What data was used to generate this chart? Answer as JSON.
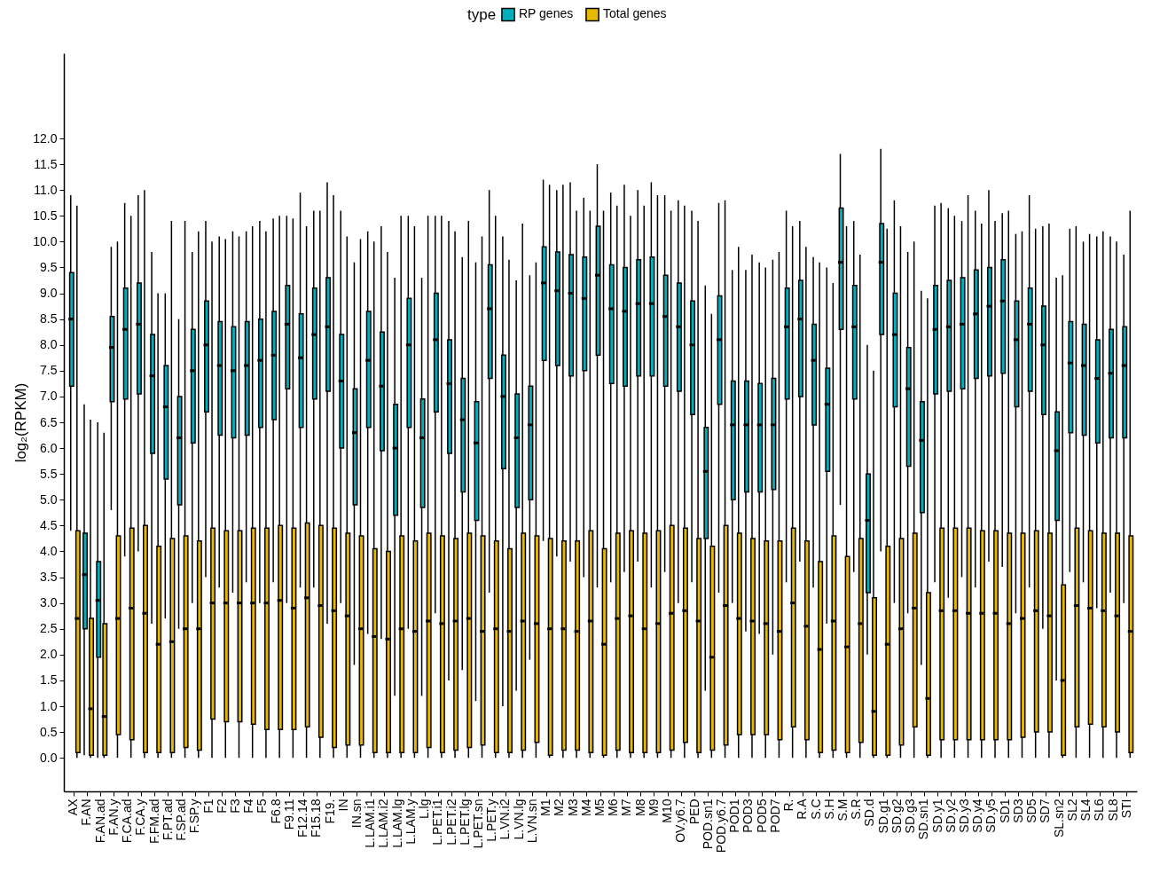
{
  "chart_data": {
    "type": "box",
    "ylabel": "log₂(RPKM)",
    "legend_title": "type",
    "legend": "top",
    "categories": [
      "AX",
      "F.AN",
      "F.AN.ad",
      "F.AN.y",
      "F.CA.ad",
      "F.CA.y",
      "F.FM.ad",
      "F.PT.ad",
      "F.SP.ad",
      "F.SP.y",
      "F1",
      "F2",
      "F3",
      "F4",
      "F5",
      "F6.8",
      "F9.11",
      "F12.14",
      "F15.18",
      "F19.",
      "IN",
      "IN.sn",
      "L.LAM.i1",
      "L.LAM.i2",
      "L.LAM.lg",
      "L.LAM.y",
      "L.lg",
      "L.PET.i1",
      "L.PET.i2",
      "L.PET.lg",
      "L.PET.sn",
      "L.PET.y",
      "L.VN.i2",
      "L.VN.lg",
      "L.VN.sn",
      "M1",
      "M2",
      "M3",
      "M4",
      "M5",
      "M6",
      "M7",
      "M8",
      "M9",
      "M10",
      "OV.y6.7",
      "PED",
      "POD.sn1",
      "POD.y6.7",
      "POD1",
      "POD3",
      "POD5",
      "POD7",
      "R.",
      "R.A",
      "S.C",
      "S.H",
      "S.M",
      "S.R",
      "SD.d",
      "SD.g1",
      "SD.g2",
      "SD.g3",
      "SD.sn1",
      "SD.y1",
      "SD.y2",
      "SD.y3",
      "SD.y4",
      "SD.y5",
      "SD1",
      "SD3",
      "SD5",
      "SD7",
      "SL.sn2",
      "SL2",
      "SL4",
      "SL6",
      "SL8",
      "STI"
    ],
    "ylim": [
      -0.65,
      13.65
    ],
    "yticks": [
      {
        "value": 0,
        "label": "0.0"
      },
      0.5,
      {
        "value": 1,
        "label": "1.0"
      },
      1.5,
      {
        "value": 2,
        "label": "2.0"
      },
      2.5,
      {
        "value": 3,
        "label": "3.0"
      },
      3.5,
      {
        "value": 4,
        "label": "4.0"
      },
      4.5,
      {
        "value": 5,
        "label": "5.0"
      },
      5.5,
      {
        "value": 6,
        "label": "6.0"
      },
      6.5,
      {
        "value": 7,
        "label": "7.0"
      },
      7.5,
      {
        "value": 8,
        "label": "8.0"
      },
      8.5,
      {
        "value": 9,
        "label": "9.0"
      },
      9.5,
      {
        "value": 10,
        "label": "10.0"
      },
      10.5,
      {
        "value": 11,
        "label": "11.0"
      },
      11.5,
      {
        "value": 12,
        "label": "12.0"
      }
    ],
    "series": [
      {
        "name": "RP genes",
        "color": "#00afbb",
        "boxes": [
          {
            "low": 4.4,
            "q1": 7.2,
            "median": 8.5,
            "q3": 9.4,
            "high": 10.9
          },
          {
            "low": 0.05,
            "q1": 2.5,
            "median": 3.55,
            "q3": 4.35,
            "high": 6.85
          },
          {
            "low": 0,
            "q1": 1.95,
            "median": 3.05,
            "q3": 3.8,
            "high": 6.5
          },
          {
            "low": 4.8,
            "q1": 6.9,
            "median": 7.95,
            "q3": 8.55,
            "high": 9.9
          },
          {
            "low": 3.9,
            "q1": 6.95,
            "median": 8.3,
            "q3": 9.1,
            "high": 10.75
          },
          {
            "low": 4.0,
            "q1": 7.05,
            "median": 8.4,
            "q3": 9.2,
            "high": 10.9
          },
          {
            "low": 2.6,
            "q1": 5.9,
            "median": 7.4,
            "q3": 8.2,
            "high": 9.8
          },
          {
            "low": 2.7,
            "q1": 5.4,
            "median": 6.8,
            "q3": 7.6,
            "high": 9.0
          },
          {
            "low": 2.5,
            "q1": 4.9,
            "median": 6.2,
            "q3": 7.0,
            "high": 8.5
          },
          {
            "low": 3.0,
            "q1": 6.1,
            "median": 7.5,
            "q3": 8.3,
            "high": 9.8
          },
          {
            "low": 3.5,
            "q1": 6.7,
            "median": 8.0,
            "q3": 8.85,
            "high": 10.4
          },
          {
            "low": 3.3,
            "q1": 6.25,
            "median": 7.6,
            "q3": 8.45,
            "high": 10.1
          },
          {
            "low": 3.2,
            "q1": 6.2,
            "median": 7.5,
            "q3": 8.35,
            "high": 10.2
          },
          {
            "low": 3.4,
            "q1": 6.25,
            "median": 7.6,
            "q3": 8.45,
            "high": 10.2
          },
          {
            "low": 3.0,
            "q1": 6.4,
            "median": 7.7,
            "q3": 8.5,
            "high": 10.4
          },
          {
            "low": 3.4,
            "q1": 6.55,
            "median": 7.8,
            "q3": 8.65,
            "high": 10.45
          },
          {
            "low": 3.0,
            "q1": 7.15,
            "median": 8.4,
            "q3": 9.15,
            "high": 10.5
          },
          {
            "low": 3.3,
            "q1": 6.4,
            "median": 7.75,
            "q3": 8.6,
            "high": 10.95
          },
          {
            "low": 3.3,
            "q1": 6.95,
            "median": 8.2,
            "q3": 9.1,
            "high": 10.6
          },
          {
            "low": 2.6,
            "q1": 7.1,
            "median": 8.35,
            "q3": 9.3,
            "high": 11.15
          },
          {
            "low": 3.0,
            "q1": 6.0,
            "median": 7.3,
            "q3": 8.2,
            "high": 10.6
          },
          {
            "low": 1.8,
            "q1": 4.9,
            "median": 6.3,
            "q3": 7.15,
            "high": 9.6
          },
          {
            "low": 2.4,
            "q1": 6.4,
            "median": 7.7,
            "q3": 8.65,
            "high": 10.2
          },
          {
            "low": 2.3,
            "q1": 5.95,
            "median": 7.2,
            "q3": 8.25,
            "high": 10.3
          },
          {
            "low": 1.2,
            "q1": 4.7,
            "median": 6.0,
            "q3": 6.85,
            "high": 9.3
          },
          {
            "low": 2.5,
            "q1": 6.4,
            "median": 8.0,
            "q3": 8.9,
            "high": 10.5
          },
          {
            "low": 1.2,
            "q1": 4.85,
            "median": 6.2,
            "q3": 6.95,
            "high": 9.3
          },
          {
            "low": 2.8,
            "q1": 6.7,
            "median": 8.1,
            "q3": 9.0,
            "high": 10.5
          },
          {
            "low": 1.5,
            "q1": 5.9,
            "median": 7.25,
            "q3": 8.1,
            "high": 10.4
          },
          {
            "low": 1.7,
            "q1": 5.15,
            "median": 6.55,
            "q3": 7.35,
            "high": 9.7
          },
          {
            "low": 1.1,
            "q1": 4.6,
            "median": 6.1,
            "q3": 6.9,
            "high": 9.6
          },
          {
            "low": 3.2,
            "q1": 7.35,
            "median": 8.7,
            "q3": 9.55,
            "high": 11.0
          },
          {
            "low": 1.0,
            "q1": 5.6,
            "median": 7.0,
            "q3": 7.8,
            "high": 10.1
          },
          {
            "low": 1.3,
            "q1": 4.85,
            "median": 6.2,
            "q3": 7.05,
            "high": 9.25
          },
          {
            "low": 1.9,
            "q1": 5.0,
            "median": 6.45,
            "q3": 7.2,
            "high": 9.35
          },
          {
            "low": 4.2,
            "q1": 7.7,
            "median": 9.2,
            "q3": 9.9,
            "high": 11.2
          },
          {
            "low": 3.9,
            "q1": 7.6,
            "median": 9.05,
            "q3": 9.8,
            "high": 11.0
          },
          {
            "low": 3.8,
            "q1": 7.4,
            "median": 9.0,
            "q3": 9.75,
            "high": 11.15
          },
          {
            "low": 3.5,
            "q1": 7.5,
            "median": 8.9,
            "q3": 9.7,
            "high": 10.85
          },
          {
            "low": 3.3,
            "q1": 7.8,
            "median": 9.35,
            "q3": 10.3,
            "high": 11.5
          },
          {
            "low": 3.4,
            "q1": 7.25,
            "median": 8.7,
            "q3": 9.55,
            "high": 10.95
          },
          {
            "low": 3.6,
            "q1": 7.2,
            "median": 8.65,
            "q3": 9.5,
            "high": 11.1
          },
          {
            "low": 3.8,
            "q1": 7.4,
            "median": 8.8,
            "q3": 9.65,
            "high": 11.0
          },
          {
            "low": 3.3,
            "q1": 7.4,
            "median": 8.8,
            "q3": 9.7,
            "high": 11.15
          },
          {
            "low": 3.6,
            "q1": 7.2,
            "median": 8.55,
            "q3": 9.35,
            "high": 10.9
          },
          {
            "low": 3.0,
            "q1": 7.1,
            "median": 8.35,
            "q3": 9.2,
            "high": 10.8
          },
          {
            "low": 3.4,
            "q1": 6.65,
            "median": 8.0,
            "q3": 8.85,
            "high": 10.6
          },
          {
            "low": 1.3,
            "q1": 4.25,
            "median": 5.55,
            "q3": 6.4,
            "high": 9.15
          },
          {
            "low": 3.2,
            "q1": 6.85,
            "median": 8.1,
            "q3": 8.95,
            "high": 10.75
          },
          {
            "low": 3.0,
            "q1": 5.0,
            "median": 6.45,
            "q3": 7.3,
            "high": 9.45
          },
          {
            "low": 2.45,
            "q1": 5.15,
            "median": 6.45,
            "q3": 7.3,
            "high": 9.45
          },
          {
            "low": 2.4,
            "q1": 5.15,
            "median": 6.45,
            "q3": 7.25,
            "high": 9.6
          },
          {
            "low": 2.0,
            "q1": 5.2,
            "median": 6.45,
            "q3": 7.35,
            "high": 9.65
          },
          {
            "low": 3.4,
            "q1": 6.95,
            "median": 8.35,
            "q3": 9.1,
            "high": 10.6
          },
          {
            "low": 3.8,
            "q1": 7.0,
            "median": 8.5,
            "q3": 9.25,
            "high": 10.4
          },
          {
            "low": 3.3,
            "q1": 6.45,
            "median": 7.7,
            "q3": 8.4,
            "high": 9.7
          },
          {
            "low": 2.6,
            "q1": 5.55,
            "median": 6.85,
            "q3": 7.55,
            "high": 9.5
          },
          {
            "low": 4.9,
            "q1": 8.3,
            "median": 9.6,
            "q3": 10.65,
            "high": 11.7
          },
          {
            "low": 3.6,
            "q1": 6.95,
            "median": 8.35,
            "q3": 9.15,
            "high": 10.4
          },
          {
            "low": 2.0,
            "q1": 3.2,
            "median": 4.6,
            "q3": 5.5,
            "high": 8.0
          },
          {
            "low": 4.0,
            "q1": 8.2,
            "median": 9.6,
            "q3": 10.35,
            "high": 11.8
          },
          {
            "low": 3.0,
            "q1": 6.8,
            "median": 8.2,
            "q3": 9.0,
            "high": 10.8
          },
          {
            "low": 2.8,
            "q1": 5.65,
            "median": 7.15,
            "q3": 7.95,
            "high": 9.8
          },
          {
            "low": 1.8,
            "q1": 4.75,
            "median": 6.15,
            "q3": 6.9,
            "high": 9.05
          },
          {
            "low": 3.4,
            "q1": 7.05,
            "median": 8.3,
            "q3": 9.15,
            "high": 10.7
          },
          {
            "low": 3.1,
            "q1": 7.1,
            "median": 8.35,
            "q3": 9.25,
            "high": 10.65
          },
          {
            "low": 3.5,
            "q1": 7.15,
            "median": 8.4,
            "q3": 9.3,
            "high": 10.4
          },
          {
            "low": 3.3,
            "q1": 7.35,
            "median": 8.6,
            "q3": 9.45,
            "high": 10.6
          },
          {
            "low": 3.8,
            "q1": 7.4,
            "median": 8.75,
            "q3": 9.5,
            "high": 11.0
          },
          {
            "low": 3.7,
            "q1": 7.45,
            "median": 8.85,
            "q3": 9.65,
            "high": 10.55
          },
          {
            "low": 2.8,
            "q1": 6.8,
            "median": 8.1,
            "q3": 8.85,
            "high": 10.15
          },
          {
            "low": 3.3,
            "q1": 7.1,
            "median": 8.4,
            "q3": 9.1,
            "high": 10.9
          },
          {
            "low": 2.5,
            "q1": 6.65,
            "median": 8.0,
            "q3": 8.75,
            "high": 10.3
          },
          {
            "low": 1.5,
            "q1": 4.6,
            "median": 5.95,
            "q3": 6.7,
            "high": 9.3
          },
          {
            "low": 3.6,
            "q1": 6.3,
            "median": 7.65,
            "q3": 8.45,
            "high": 10.25
          },
          {
            "low": 3.4,
            "q1": 6.25,
            "median": 7.6,
            "q3": 8.4,
            "high": 10.0
          },
          {
            "low": 2.9,
            "q1": 6.1,
            "median": 7.35,
            "q3": 8.1,
            "high": 10.1
          },
          {
            "low": 3.2,
            "q1": 6.2,
            "median": 7.45,
            "q3": 8.3,
            "high": 10.1
          },
          {
            "low": 3.0,
            "q1": 6.2,
            "median": 7.6,
            "q3": 8.35,
            "high": 9.75
          }
        ]
      },
      {
        "name": "Total genes",
        "color": "#e7b800",
        "boxes": [
          {
            "low": 0,
            "q1": 0.1,
            "median": 2.7,
            "q3": 4.4,
            "high": 10.7
          },
          {
            "low": 0,
            "q1": 0.05,
            "median": 0.95,
            "q3": 2.7,
            "high": 6.55
          },
          {
            "low": 0,
            "q1": 0.05,
            "median": 0.8,
            "q3": 2.6,
            "high": 6.3
          },
          {
            "low": 0,
            "q1": 0.45,
            "median": 2.7,
            "q3": 4.3,
            "high": 10.0
          },
          {
            "low": 0,
            "q1": 0.35,
            "median": 2.9,
            "q3": 4.45,
            "high": 10.5
          },
          {
            "low": 0,
            "q1": 0.1,
            "median": 2.8,
            "q3": 4.5,
            "high": 11.0
          },
          {
            "low": 0,
            "q1": 0.1,
            "median": 2.2,
            "q3": 4.1,
            "high": 9.0
          },
          {
            "low": 0,
            "q1": 0.1,
            "median": 2.25,
            "q3": 4.25,
            "high": 10.4
          },
          {
            "low": 0,
            "q1": 0.2,
            "median": 2.5,
            "q3": 4.3,
            "high": 10.4
          },
          {
            "low": 0,
            "q1": 0.15,
            "median": 2.5,
            "q3": 4.2,
            "high": 10.2
          },
          {
            "low": 0,
            "q1": 0.75,
            "median": 3.0,
            "q3": 4.45,
            "high": 10.0
          },
          {
            "low": 0,
            "q1": 0.7,
            "median": 3.0,
            "q3": 4.4,
            "high": 10.05
          },
          {
            "low": 0,
            "q1": 0.7,
            "median": 3.0,
            "q3": 4.4,
            "high": 10.1
          },
          {
            "low": 0,
            "q1": 0.65,
            "median": 3.0,
            "q3": 4.45,
            "high": 10.3
          },
          {
            "low": 0,
            "q1": 0.55,
            "median": 3.0,
            "q3": 4.45,
            "high": 10.2
          },
          {
            "low": 0,
            "q1": 0.55,
            "median": 3.05,
            "q3": 4.5,
            "high": 10.5
          },
          {
            "low": 0,
            "q1": 0.55,
            "median": 2.9,
            "q3": 4.45,
            "high": 10.45
          },
          {
            "low": 0,
            "q1": 0.6,
            "median": 3.1,
            "q3": 4.55,
            "high": 10.3
          },
          {
            "low": 0,
            "q1": 0.4,
            "median": 2.95,
            "q3": 4.5,
            "high": 10.6
          },
          {
            "low": 0,
            "q1": 0.2,
            "median": 2.85,
            "q3": 4.45,
            "high": 10.9
          },
          {
            "low": 0,
            "q1": 0.25,
            "median": 2.75,
            "q3": 4.35,
            "high": 10.1
          },
          {
            "low": 0,
            "q1": 0.25,
            "median": 2.5,
            "q3": 4.3,
            "high": 10.05
          },
          {
            "low": 0,
            "q1": 0.1,
            "median": 2.35,
            "q3": 4.05,
            "high": 10.0
          },
          {
            "low": 0,
            "q1": 0.1,
            "median": 2.3,
            "q3": 4.0,
            "high": 9.8
          },
          {
            "low": 0,
            "q1": 0.1,
            "median": 2.5,
            "q3": 4.3,
            "high": 10.5
          },
          {
            "low": 0,
            "q1": 0.1,
            "median": 2.45,
            "q3": 4.2,
            "high": 10.3
          },
          {
            "low": 0,
            "q1": 0.2,
            "median": 2.65,
            "q3": 4.35,
            "high": 10.5
          },
          {
            "low": 0,
            "q1": 0.1,
            "median": 2.6,
            "q3": 4.3,
            "high": 10.5
          },
          {
            "low": 0,
            "q1": 0.15,
            "median": 2.65,
            "q3": 4.25,
            "high": 10.2
          },
          {
            "low": 0,
            "q1": 0.2,
            "median": 2.7,
            "q3": 4.35,
            "high": 10.4
          },
          {
            "low": 0,
            "q1": 0.25,
            "median": 2.45,
            "q3": 4.3,
            "high": 10.1
          },
          {
            "low": 0,
            "q1": 0.1,
            "median": 2.5,
            "q3": 4.2,
            "high": 10.5
          },
          {
            "low": 0,
            "q1": 0.1,
            "median": 2.45,
            "q3": 4.05,
            "high": 9.65
          },
          {
            "low": 0,
            "q1": 0.15,
            "median": 2.65,
            "q3": 4.35,
            "high": 10.35
          },
          {
            "low": 0,
            "q1": 0.3,
            "median": 2.6,
            "q3": 4.3,
            "high": 9.6
          },
          {
            "low": 0,
            "q1": 0.05,
            "median": 2.5,
            "q3": 4.25,
            "high": 11.1
          },
          {
            "low": 0,
            "q1": 0.15,
            "median": 2.5,
            "q3": 4.2,
            "high": 11.1
          },
          {
            "low": 0,
            "q1": 0.15,
            "median": 2.45,
            "q3": 4.2,
            "high": 10.6
          },
          {
            "low": 0,
            "q1": 0.1,
            "median": 2.65,
            "q3": 4.4,
            "high": 10.6
          },
          {
            "low": 0,
            "q1": 0.05,
            "median": 2.2,
            "q3": 4.05,
            "high": 10.6
          },
          {
            "low": 0,
            "q1": 0.15,
            "median": 2.7,
            "q3": 4.35,
            "high": 10.7
          },
          {
            "low": 0,
            "q1": 0.1,
            "median": 2.75,
            "q3": 4.4,
            "high": 10.5
          },
          {
            "low": 0,
            "q1": 0.1,
            "median": 2.5,
            "q3": 4.35,
            "high": 10.7
          },
          {
            "low": 0,
            "q1": 0.1,
            "median": 2.6,
            "q3": 4.4,
            "high": 10.9
          },
          {
            "low": 0,
            "q1": 0.15,
            "median": 2.8,
            "q3": 4.5,
            "high": 10.6
          },
          {
            "low": 0,
            "q1": 0.3,
            "median": 2.85,
            "q3": 4.45,
            "high": 10.7
          },
          {
            "low": 0,
            "q1": 0.1,
            "median": 2.65,
            "q3": 4.25,
            "high": 10.4
          },
          {
            "low": 0,
            "q1": 0.15,
            "median": 1.95,
            "q3": 4.1,
            "high": 8.6
          },
          {
            "low": 0,
            "q1": 0.25,
            "median": 2.95,
            "q3": 4.5,
            "high": 10.8
          },
          {
            "low": 0,
            "q1": 0.45,
            "median": 2.7,
            "q3": 4.35,
            "high": 9.9
          },
          {
            "low": 0,
            "q1": 0.45,
            "median": 2.65,
            "q3": 4.25,
            "high": 9.75
          },
          {
            "low": 0,
            "q1": 0.45,
            "median": 2.6,
            "q3": 4.2,
            "high": 9.5
          },
          {
            "low": 0,
            "q1": 0.35,
            "median": 2.45,
            "q3": 4.2,
            "high": 9.8
          },
          {
            "low": 0,
            "q1": 0.6,
            "median": 3.0,
            "q3": 4.45,
            "high": 10.3
          },
          {
            "low": 0,
            "q1": 0.35,
            "median": 2.55,
            "q3": 4.2,
            "high": 9.9
          },
          {
            "low": 0,
            "q1": 0.1,
            "median": 2.1,
            "q3": 3.8,
            "high": 9.6
          },
          {
            "low": 0,
            "q1": 0.15,
            "median": 2.65,
            "q3": 4.3,
            "high": 9.2
          },
          {
            "low": 0,
            "q1": 0.1,
            "median": 2.15,
            "q3": 3.9,
            "high": 10.3
          },
          {
            "low": 0,
            "q1": 0.3,
            "median": 2.6,
            "q3": 4.25,
            "high": 9.75
          },
          {
            "low": 0,
            "q1": 0.05,
            "median": 0.9,
            "q3": 3.1,
            "high": 7.5
          },
          {
            "low": 0,
            "q1": 0.05,
            "median": 2.2,
            "q3": 4.1,
            "high": 10.25
          },
          {
            "low": 0,
            "q1": 0.25,
            "median": 2.5,
            "q3": 4.25,
            "high": 10.3
          },
          {
            "low": 0,
            "q1": 0.6,
            "median": 2.9,
            "q3": 4.35,
            "high": 10.0
          },
          {
            "low": 0,
            "q1": 0.05,
            "median": 1.15,
            "q3": 3.2,
            "high": 8.9
          },
          {
            "low": 0,
            "q1": 0.35,
            "median": 2.85,
            "q3": 4.45,
            "high": 10.75
          },
          {
            "low": 0,
            "q1": 0.35,
            "median": 2.85,
            "q3": 4.45,
            "high": 10.5
          },
          {
            "low": 0,
            "q1": 0.35,
            "median": 2.8,
            "q3": 4.45,
            "high": 10.9
          },
          {
            "low": 0,
            "q1": 0.35,
            "median": 2.8,
            "q3": 4.4,
            "high": 10.35
          },
          {
            "low": 0,
            "q1": 0.35,
            "median": 2.8,
            "q3": 4.4,
            "high": 10.4
          },
          {
            "low": 0,
            "q1": 0.35,
            "median": 2.6,
            "q3": 4.35,
            "high": 10.6
          },
          {
            "low": 0,
            "q1": 0.4,
            "median": 2.7,
            "q3": 4.35,
            "high": 10.2
          },
          {
            "low": 0,
            "q1": 0.5,
            "median": 2.85,
            "q3": 4.4,
            "high": 10.25
          },
          {
            "low": 0,
            "q1": 0.5,
            "median": 2.75,
            "q3": 4.35,
            "high": 10.35
          },
          {
            "low": 0,
            "q1": 0.05,
            "median": 1.5,
            "q3": 3.35,
            "high": 9.35
          },
          {
            "low": 0,
            "q1": 0.6,
            "median": 2.95,
            "q3": 4.45,
            "high": 10.3
          },
          {
            "low": 0,
            "q1": 0.65,
            "median": 2.9,
            "q3": 4.4,
            "high": 10.15
          },
          {
            "low": 0,
            "q1": 0.6,
            "median": 2.85,
            "q3": 4.35,
            "high": 10.2
          },
          {
            "low": 0,
            "q1": 0.5,
            "median": 2.75,
            "q3": 4.35,
            "high": 10.0
          },
          {
            "low": 0,
            "q1": 0.1,
            "median": 2.45,
            "q3": 4.3,
            "high": 10.6
          }
        ]
      }
    ]
  }
}
